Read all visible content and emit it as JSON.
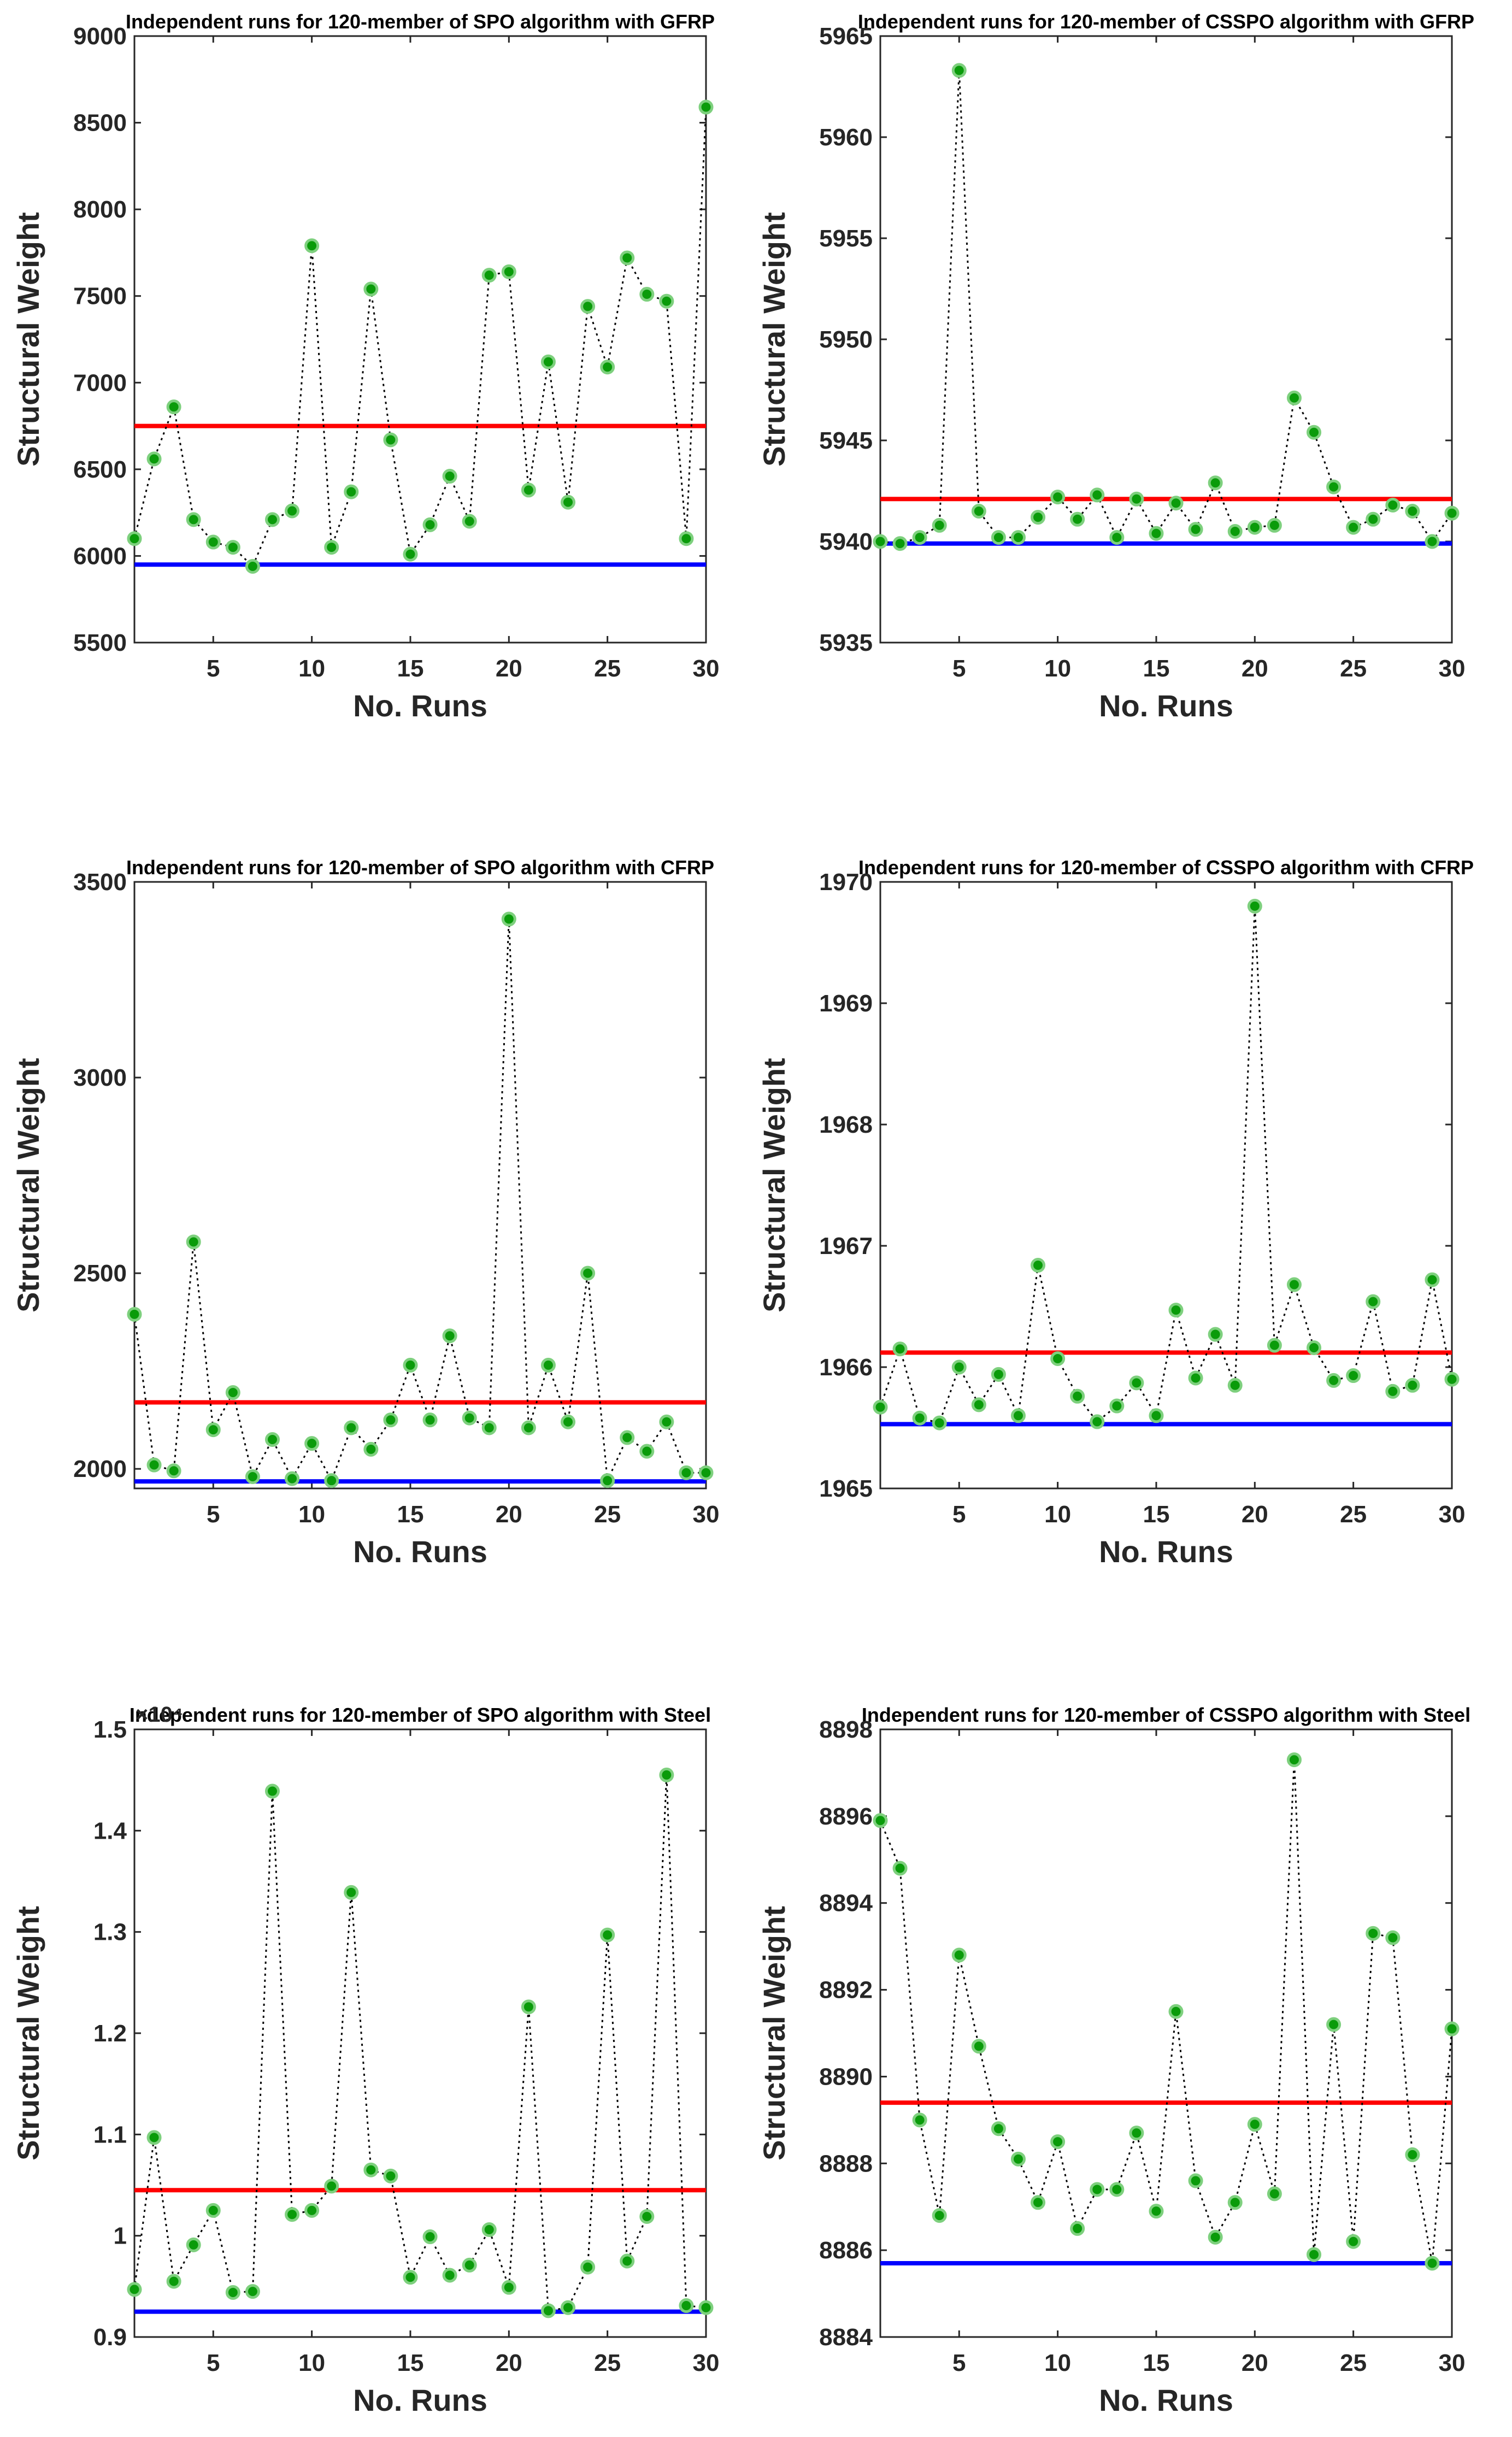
{
  "chart_data": [
    {
      "type": "line",
      "title": "Independent runs for 120-member of SPO algorithm with GFRP",
      "xlabel": "No. Runs",
      "ylabel": "Structural Weight",
      "xlim": [
        1,
        30
      ],
      "ylim": [
        5500,
        9000
      ],
      "xticks": [
        5,
        10,
        15,
        20,
        25,
        30
      ],
      "xtick_labels": [
        "5",
        "10",
        "15",
        "20",
        "25",
        "30"
      ],
      "yticks": [
        5500,
        6000,
        6500,
        7000,
        7500,
        8000,
        8500,
        9000
      ],
      "ytick_labels": [
        "5500",
        "6000",
        "6500",
        "7000",
        "7500",
        "8000",
        "8500",
        "9000"
      ],
      "exponent_label": "",
      "x": [
        1,
        2,
        3,
        4,
        5,
        6,
        7,
        8,
        9,
        10,
        11,
        12,
        13,
        14,
        15,
        16,
        17,
        18,
        19,
        20,
        21,
        22,
        23,
        24,
        25,
        26,
        27,
        28,
        29,
        30
      ],
      "values": [
        6100,
        6560,
        6860,
        6210,
        6080,
        6050,
        5940,
        6210,
        6260,
        7790,
        6050,
        6370,
        7540,
        6670,
        6010,
        6180,
        6460,
        6200,
        7620,
        7640,
        6380,
        7120,
        6310,
        7440,
        7090,
        7720,
        7510,
        7470,
        6100,
        8590
      ],
      "mean_line": {
        "value": 6750,
        "color": "#ff0000"
      },
      "best_line": {
        "value": 5950,
        "color": "#0000ff"
      },
      "grid": false
    },
    {
      "type": "line",
      "title": "Independent runs for 120-member of CSSPO algorithm with GFRP",
      "xlabel": "No. Runs",
      "ylabel": "Structural Weight",
      "xlim": [
        1,
        30
      ],
      "ylim": [
        5935,
        5965
      ],
      "xticks": [
        5,
        10,
        15,
        20,
        25,
        30
      ],
      "xtick_labels": [
        "5",
        "10",
        "15",
        "20",
        "25",
        "30"
      ],
      "yticks": [
        5935,
        5940,
        5945,
        5950,
        5955,
        5960,
        5965
      ],
      "ytick_labels": [
        "5935",
        "5940",
        "5945",
        "5950",
        "5955",
        "5960",
        "5965"
      ],
      "exponent_label": "",
      "x": [
        1,
        2,
        3,
        4,
        5,
        6,
        7,
        8,
        9,
        10,
        11,
        12,
        13,
        14,
        15,
        16,
        17,
        18,
        19,
        20,
        21,
        22,
        23,
        24,
        25,
        26,
        27,
        28,
        29,
        30
      ],
      "values": [
        5940.0,
        5939.9,
        5940.2,
        5940.8,
        5963.3,
        5941.5,
        5940.2,
        5940.2,
        5941.2,
        5942.2,
        5941.1,
        5942.3,
        5940.2,
        5942.1,
        5940.4,
        5941.9,
        5940.6,
        5942.9,
        5940.5,
        5940.7,
        5940.8,
        5947.1,
        5945.4,
        5942.7,
        5940.7,
        5941.1,
        5941.8,
        5941.5,
        5940.0,
        5941.4
      ],
      "mean_line": {
        "value": 5942.1,
        "color": "#ff0000"
      },
      "best_line": {
        "value": 5939.9,
        "color": "#0000ff"
      },
      "grid": false
    },
    {
      "type": "line",
      "title": "Independent runs for 120-member of SPO algorithm with CFRP",
      "xlabel": "No. Runs",
      "ylabel": "Structural Weight",
      "xlim": [
        1,
        30
      ],
      "ylim": [
        1950,
        3500
      ],
      "xticks": [
        5,
        10,
        15,
        20,
        25,
        30
      ],
      "xtick_labels": [
        "5",
        "10",
        "15",
        "20",
        "25",
        "30"
      ],
      "yticks": [
        2000,
        2500,
        3000,
        3500
      ],
      "ytick_labels": [
        "2000",
        "2500",
        "3000",
        "3500"
      ],
      "exponent_label": "",
      "x": [
        1,
        2,
        3,
        4,
        5,
        6,
        7,
        8,
        9,
        10,
        11,
        12,
        13,
        14,
        15,
        16,
        17,
        18,
        19,
        20,
        21,
        22,
        23,
        24,
        25,
        26,
        27,
        28,
        29,
        30
      ],
      "values": [
        2395,
        2010,
        1995,
        2580,
        2100,
        2195,
        1980,
        2075,
        1975,
        2065,
        1970,
        2105,
        2050,
        2125,
        2265,
        2125,
        2340,
        2130,
        2105,
        3405,
        2105,
        2265,
        2120,
        2500,
        1970,
        2080,
        2045,
        2120,
        1990,
        1990
      ],
      "mean_line": {
        "value": 2170,
        "color": "#ff0000"
      },
      "best_line": {
        "value": 1968,
        "color": "#0000ff"
      },
      "grid": false
    },
    {
      "type": "line",
      "title": "Independent runs for 120-member of CSSPO algorithm with CFRP",
      "xlabel": "No. Runs",
      "ylabel": "Structural Weight",
      "xlim": [
        1,
        30
      ],
      "ylim": [
        1965,
        1970
      ],
      "xticks": [
        5,
        10,
        15,
        20,
        25,
        30
      ],
      "xtick_labels": [
        "5",
        "10",
        "15",
        "20",
        "25",
        "30"
      ],
      "yticks": [
        1965,
        1966,
        1967,
        1968,
        1969,
        1970
      ],
      "ytick_labels": [
        "1965",
        "1966",
        "1967",
        "1968",
        "1969",
        "1970"
      ],
      "exponent_label": "",
      "x": [
        1,
        2,
        3,
        4,
        5,
        6,
        7,
        8,
        9,
        10,
        11,
        12,
        13,
        14,
        15,
        16,
        17,
        18,
        19,
        20,
        21,
        22,
        23,
        24,
        25,
        26,
        27,
        28,
        29,
        30
      ],
      "values": [
        1965.67,
        1966.15,
        1965.58,
        1965.54,
        1966.0,
        1965.69,
        1965.94,
        1965.6,
        1966.84,
        1966.07,
        1965.76,
        1965.55,
        1965.68,
        1965.87,
        1965.6,
        1966.47,
        1965.91,
        1966.27,
        1965.85,
        1969.8,
        1966.18,
        1966.68,
        1966.16,
        1965.89,
        1965.93,
        1966.54,
        1965.8,
        1965.85,
        1966.72,
        1965.9
      ],
      "mean_line": {
        "value": 1966.12,
        "color": "#ff0000"
      },
      "best_line": {
        "value": 1965.53,
        "color": "#0000ff"
      },
      "grid": false
    },
    {
      "type": "line",
      "title": "Independent runs for 120-member of SPO algorithm with Steel",
      "xlabel": "No. Runs",
      "ylabel": "Structural Weight",
      "xlim": [
        1,
        30
      ],
      "ylim": [
        0.9,
        1.5
      ],
      "xticks": [
        5,
        10,
        15,
        20,
        25,
        30
      ],
      "xtick_labels": [
        "5",
        "10",
        "15",
        "20",
        "25",
        "30"
      ],
      "yticks": [
        0.9,
        1.0,
        1.1,
        1.2,
        1.3,
        1.4,
        1.5
      ],
      "ytick_labels": [
        "0.9",
        "1",
        "1.1",
        "1.2",
        "1.3",
        "1.4",
        "1.5"
      ],
      "exponent_label": "×10⁴",
      "x": [
        1,
        2,
        3,
        4,
        5,
        6,
        7,
        8,
        9,
        10,
        11,
        12,
        13,
        14,
        15,
        16,
        17,
        18,
        19,
        20,
        21,
        22,
        23,
        24,
        25,
        26,
        27,
        28,
        29,
        30
      ],
      "values": [
        0.947,
        1.097,
        0.955,
        0.991,
        1.025,
        0.944,
        0.945,
        1.439,
        1.021,
        1.025,
        1.049,
        1.339,
        1.065,
        1.059,
        0.959,
        0.999,
        0.961,
        0.971,
        1.006,
        0.949,
        1.226,
        0.926,
        0.929,
        0.969,
        1.297,
        0.975,
        1.019,
        1.455,
        0.931,
        0.929
      ],
      "mean_line": {
        "value": 1.045,
        "color": "#ff0000"
      },
      "best_line": {
        "value": 0.925,
        "color": "#0000ff"
      },
      "grid": false
    },
    {
      "type": "line",
      "title": "Independent runs for 120-member of CSSPO algorithm with Steel",
      "xlabel": "No. Runs",
      "ylabel": "Structural Weight",
      "xlim": [
        1,
        30
      ],
      "ylim": [
        8884,
        8898
      ],
      "xticks": [
        5,
        10,
        15,
        20,
        25,
        30
      ],
      "xtick_labels": [
        "5",
        "10",
        "15",
        "20",
        "25",
        "30"
      ],
      "yticks": [
        8884,
        8886,
        8888,
        8890,
        8892,
        8894,
        8896,
        8898
      ],
      "ytick_labels": [
        "8884",
        "8886",
        "8888",
        "8890",
        "8892",
        "8894",
        "8896",
        "8898"
      ],
      "exponent_label": "",
      "x": [
        1,
        2,
        3,
        4,
        5,
        6,
        7,
        8,
        9,
        10,
        11,
        12,
        13,
        14,
        15,
        16,
        17,
        18,
        19,
        20,
        21,
        22,
        23,
        24,
        25,
        26,
        27,
        28,
        29,
        30
      ],
      "values": [
        8895.9,
        8894.8,
        8889.0,
        8886.8,
        8892.8,
        8890.7,
        8888.8,
        8888.1,
        8887.1,
        8888.5,
        8886.5,
        8887.4,
        8887.4,
        8888.7,
        8886.9,
        8891.5,
        8887.6,
        8886.3,
        8887.1,
        8888.9,
        8887.3,
        8897.3,
        8885.9,
        8891.2,
        8886.2,
        8893.3,
        8893.2,
        8888.2,
        8885.7,
        8891.1
      ],
      "mean_line": {
        "value": 8889.4,
        "color": "#ff0000"
      },
      "best_line": {
        "value": 8885.7,
        "color": "#0000ff"
      },
      "grid": false
    }
  ]
}
